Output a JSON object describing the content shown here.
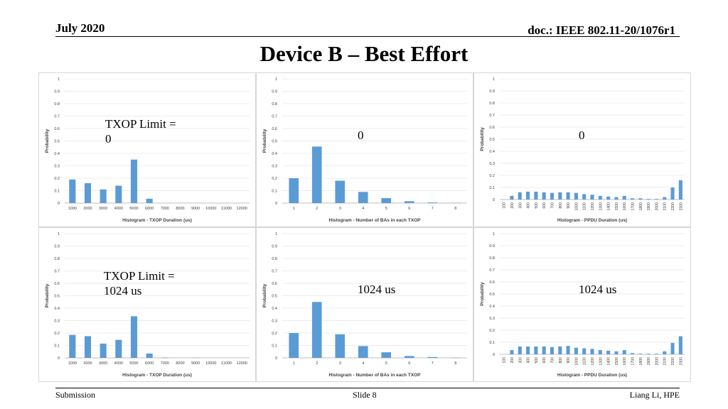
{
  "header": {
    "date": "July 2020",
    "doc": "doc.: IEEE 802.11-20/1076r1"
  },
  "slide": {
    "title": "Device B – Best Effort"
  },
  "footer": {
    "left": "Submission",
    "center": "Slide 8",
    "right": "Liang Li, HPE"
  },
  "annotations": {
    "r1c1": "TXOP Limit =\n0",
    "r1c2": "0",
    "r1c3": "0",
    "r2c1": "TXOP Limit =\n1024 us",
    "r2c2": "1024 us",
    "r2c3": "1024 us"
  },
  "chart_data": [
    {
      "id": "r1c1",
      "type": "bar",
      "bar_color": "#5b9bd5",
      "categories": [
        "1000",
        "2000",
        "3000",
        "4000",
        "5000",
        "6000",
        "7000",
        "8000",
        "9000",
        "10000",
        "11000",
        "12000"
      ],
      "values": [
        0.19,
        0.16,
        0.11,
        0.14,
        0.35,
        0.035,
        0,
        0,
        0,
        0,
        0,
        0
      ],
      "ylim": [
        0,
        1
      ],
      "yticks": [
        "0",
        "0.1",
        "0.2",
        "0.3",
        "0.4",
        "0.5",
        "0.6",
        "0.7",
        "0.8",
        "0.9",
        "1"
      ],
      "xlabel": "Histogram - TXOP Duration (us)",
      "ylabel": "Probability",
      "x_rotated": false
    },
    {
      "id": "r1c2",
      "type": "bar",
      "bar_color": "#5b9bd5",
      "categories": [
        "1",
        "2",
        "3",
        "4",
        "5",
        "6",
        "7",
        "8"
      ],
      "values": [
        0.2,
        0.455,
        0.18,
        0.09,
        0.04,
        0.015,
        0.005,
        0.002
      ],
      "ylim": [
        0,
        1
      ],
      "yticks": [
        "0",
        "0.1",
        "0.2",
        "0.3",
        "0.4",
        "0.5",
        "0.6",
        "0.7",
        "0.8",
        "0.9",
        "1"
      ],
      "xlabel": "Histogram - Number of BAs in each TXOP",
      "ylabel": "Probability",
      "x_rotated": false
    },
    {
      "id": "r1c3",
      "type": "bar",
      "bar_color": "#5b9bd5",
      "categories": [
        "100",
        "200",
        "300",
        "400",
        "500",
        "600",
        "700",
        "800",
        "900",
        "1000",
        "1100",
        "1200",
        "1300",
        "1400",
        "1500",
        "1600",
        "1700",
        "1800",
        "1900",
        "2000",
        "2100",
        "2200",
        "2300"
      ],
      "values": [
        0,
        0.03,
        0.06,
        0.065,
        0.065,
        0.06,
        0.055,
        0.06,
        0.06,
        0.055,
        0.045,
        0.04,
        0.03,
        0.025,
        0.02,
        0.03,
        0.01,
        0.01,
        0.005,
        0.005,
        0.02,
        0.1,
        0.16
      ],
      "ylim": [
        0,
        1
      ],
      "yticks": [
        "0",
        "0.1",
        "0.2",
        "0.3",
        "0.4",
        "0.5",
        "0.6",
        "0.7",
        "0.8",
        "0.9",
        "1"
      ],
      "xlabel": "Histogram - PPDU Duration (us)",
      "ylabel": "Probability",
      "x_rotated": true
    },
    {
      "id": "r2c1",
      "type": "bar",
      "bar_color": "#5b9bd5",
      "categories": [
        "1000",
        "2000",
        "3000",
        "4000",
        "5000",
        "6000",
        "7000",
        "8000",
        "9000",
        "10000",
        "11000",
        "12000"
      ],
      "values": [
        0.185,
        0.175,
        0.115,
        0.145,
        0.335,
        0.035,
        0.003,
        0,
        0.002,
        0,
        0,
        0
      ],
      "ylim": [
        0,
        1
      ],
      "yticks": [
        "0",
        "0.1",
        "0.2",
        "0.3",
        "0.4",
        "0.5",
        "0.6",
        "0.7",
        "0.8",
        "0.9",
        "1"
      ],
      "xlabel": "Histogram - TXOP Duration (us)",
      "ylabel": "Probability",
      "x_rotated": false
    },
    {
      "id": "r2c2",
      "type": "bar",
      "bar_color": "#5b9bd5",
      "categories": [
        "1",
        "2",
        "3",
        "4",
        "5",
        "6",
        "7",
        "8"
      ],
      "values": [
        0.2,
        0.45,
        0.19,
        0.095,
        0.045,
        0.015,
        0.007,
        0.002
      ],
      "ylim": [
        0,
        1
      ],
      "yticks": [
        "0",
        "0.1",
        "0.2",
        "0.3",
        "0.4",
        "0.5",
        "0.6",
        "0.7",
        "0.8",
        "0.9",
        "1"
      ],
      "xlabel": "Histogram - Number of BAs in each TXOP",
      "ylabel": "Probability",
      "x_rotated": false
    },
    {
      "id": "r2c3",
      "type": "bar",
      "bar_color": "#5b9bd5",
      "categories": [
        "100",
        "200",
        "300",
        "400",
        "500",
        "600",
        "700",
        "800",
        "900",
        "1000",
        "1100",
        "1200",
        "1300",
        "1400",
        "1500",
        "1600",
        "1700",
        "1800",
        "1900",
        "2000",
        "2100",
        "2200",
        "2300"
      ],
      "values": [
        0,
        0.035,
        0.065,
        0.065,
        0.065,
        0.065,
        0.06,
        0.065,
        0.07,
        0.055,
        0.05,
        0.045,
        0.035,
        0.03,
        0.025,
        0.035,
        0.01,
        0.005,
        0.005,
        0.005,
        0.025,
        0.095,
        0.15
      ],
      "ylim": [
        0,
        1
      ],
      "yticks": [
        "0",
        "0.1",
        "0.2",
        "0.3",
        "0.4",
        "0.5",
        "0.6",
        "0.7",
        "0.8",
        "0.9",
        "1"
      ],
      "xlabel": "Histogram - PPDU Duration (us)",
      "ylabel": "Probability",
      "x_rotated": true
    }
  ]
}
